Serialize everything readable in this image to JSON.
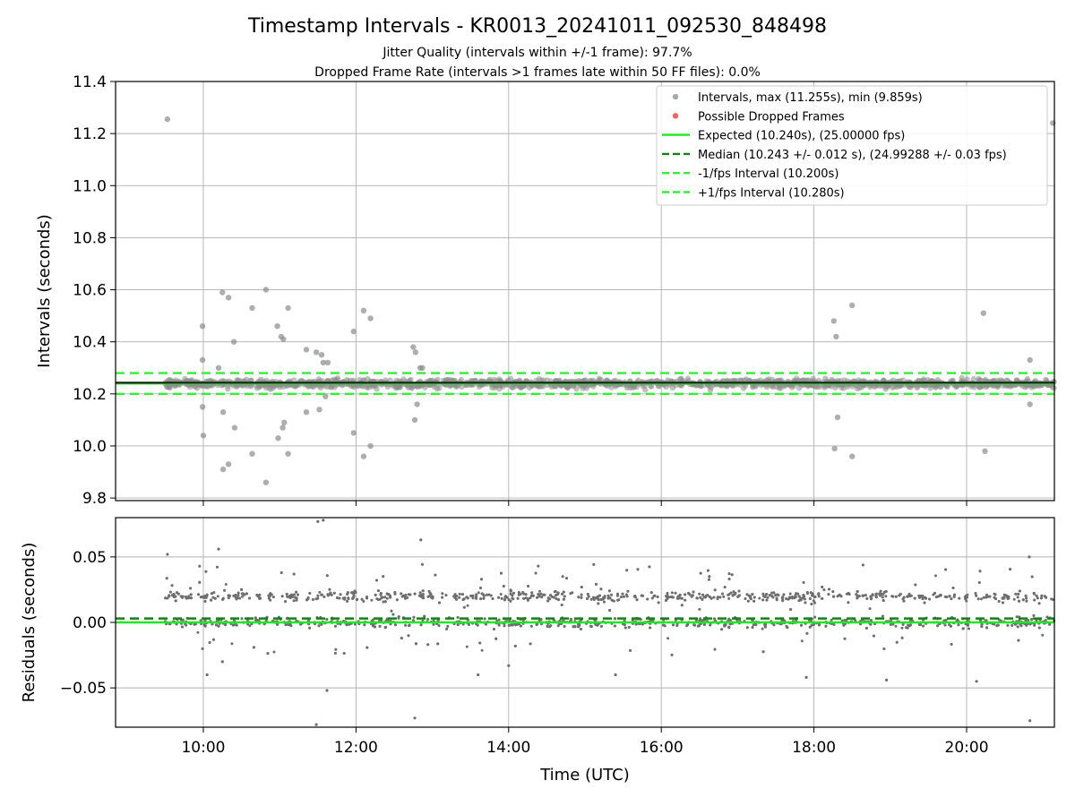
{
  "chart_data": {
    "type": "scatter",
    "title": "Timestamp Intervals - KR0013_20241011_092530_848498",
    "subtitle_lines": [
      "Jitter Quality (intervals within +/-1 frame): 97.7%",
      "Dropped Frame Rate (intervals >1 frames late within 50 FF files): 0.0%"
    ],
    "xlabel": "Time (UTC)",
    "x_ticks": [
      "10:00",
      "12:00",
      "14:00",
      "16:00",
      "18:00",
      "20:00"
    ],
    "x_range_hours": [
      8.85,
      21.15
    ],
    "data_x_range_hours": [
      9.5,
      21.15
    ],
    "grid": true,
    "legend_placement": "top-right",
    "colors": {
      "points": "#8c8c8c",
      "residual_points": "#6e6e6e",
      "dropped": "#ff6b6b",
      "expected": "#1ee81e",
      "median": "#177e17",
      "band": "#33ee33",
      "grid": "#b0b0b0"
    },
    "panels": [
      {
        "name": "intervals",
        "ylabel": "Intervals (seconds)",
        "ylim": [
          9.79,
          11.4
        ],
        "y_ticks": [
          "9.8",
          "10.0",
          "10.2",
          "10.4",
          "10.6",
          "10.8",
          "11.0",
          "11.2",
          "11.4"
        ],
        "y_tick_values": [
          9.8,
          10.0,
          10.2,
          10.4,
          10.6,
          10.8,
          11.0,
          11.2,
          11.4
        ],
        "lines": {
          "expected": 10.24,
          "median": 10.243,
          "minus_1_fps": 10.2,
          "plus_1_fps": 10.28
        },
        "core_band": [
          10.205,
          10.275
        ],
        "outliers": [
          {
            "x": 9.53,
            "y": 11.255
          },
          {
            "x": 9.99,
            "y": 10.46
          },
          {
            "x": 9.99,
            "y": 10.33
          },
          {
            "x": 9.99,
            "y": 10.15
          },
          {
            "x": 10.0,
            "y": 10.04
          },
          {
            "x": 10.2,
            "y": 10.3
          },
          {
            "x": 10.25,
            "y": 10.59
          },
          {
            "x": 10.26,
            "y": 10.13
          },
          {
            "x": 10.26,
            "y": 9.91
          },
          {
            "x": 10.33,
            "y": 10.57
          },
          {
            "x": 10.33,
            "y": 9.93
          },
          {
            "x": 10.4,
            "y": 10.4
          },
          {
            "x": 10.41,
            "y": 10.07
          },
          {
            "x": 10.64,
            "y": 10.53
          },
          {
            "x": 10.64,
            "y": 9.97
          },
          {
            "x": 10.82,
            "y": 10.6
          },
          {
            "x": 10.82,
            "y": 9.86
          },
          {
            "x": 10.97,
            "y": 10.46
          },
          {
            "x": 10.98,
            "y": 10.03
          },
          {
            "x": 11.02,
            "y": 10.42
          },
          {
            "x": 11.05,
            "y": 10.41
          },
          {
            "x": 11.04,
            "y": 10.07
          },
          {
            "x": 11.06,
            "y": 10.09
          },
          {
            "x": 11.11,
            "y": 10.53
          },
          {
            "x": 11.11,
            "y": 9.97
          },
          {
            "x": 11.35,
            "y": 10.37
          },
          {
            "x": 11.35,
            "y": 10.13
          },
          {
            "x": 11.48,
            "y": 10.36
          },
          {
            "x": 11.52,
            "y": 10.14
          },
          {
            "x": 11.55,
            "y": 10.35
          },
          {
            "x": 11.57,
            "y": 10.32
          },
          {
            "x": 11.63,
            "y": 10.32
          },
          {
            "x": 11.6,
            "y": 10.19
          },
          {
            "x": 11.97,
            "y": 10.44
          },
          {
            "x": 11.97,
            "y": 10.05
          },
          {
            "x": 12.1,
            "y": 10.52
          },
          {
            "x": 12.1,
            "y": 9.96
          },
          {
            "x": 12.19,
            "y": 10.49
          },
          {
            "x": 12.19,
            "y": 10.0
          },
          {
            "x": 12.75,
            "y": 10.38
          },
          {
            "x": 12.77,
            "y": 10.1
          },
          {
            "x": 12.78,
            "y": 10.36
          },
          {
            "x": 12.8,
            "y": 10.16
          },
          {
            "x": 12.84,
            "y": 10.3
          },
          {
            "x": 12.87,
            "y": 10.3
          },
          {
            "x": 18.26,
            "y": 10.48
          },
          {
            "x": 18.29,
            "y": 10.42
          },
          {
            "x": 18.31,
            "y": 10.11
          },
          {
            "x": 18.27,
            "y": 9.99
          },
          {
            "x": 18.5,
            "y": 10.54
          },
          {
            "x": 18.5,
            "y": 9.96
          },
          {
            "x": 20.22,
            "y": 10.51
          },
          {
            "x": 20.24,
            "y": 9.98
          },
          {
            "x": 20.83,
            "y": 10.33
          },
          {
            "x": 20.83,
            "y": 10.16
          },
          {
            "x": 21.13,
            "y": 11.24
          }
        ],
        "legend": [
          {
            "label": "Intervals, max (11.255s), min (9.859s)",
            "kind": "dot",
            "color": "#a8a8a8"
          },
          {
            "label": "Possible Dropped Frames",
            "kind": "dot",
            "color": "#f06464"
          },
          {
            "label": "Expected (10.240s), (25.00000 fps)",
            "kind": "solid",
            "color": "#1ee81e"
          },
          {
            "label": "Median (10.243 +/- 0.012 s), (24.99288 +/- 0.03 fps)",
            "kind": "dashed",
            "color": "#177e17"
          },
          {
            "label": "-1/fps Interval (10.200s)",
            "kind": "dashed",
            "color": "#33ee33"
          },
          {
            "label": "+1/fps Interval (10.280s)",
            "kind": "dashed",
            "color": "#33ee33"
          }
        ]
      },
      {
        "name": "residuals",
        "ylabel": "Residuals (seconds)",
        "ylim": [
          -0.08,
          0.08
        ],
        "y_ticks": [
          "−0.05",
          "0.00",
          "0.05"
        ],
        "y_tick_values": [
          -0.05,
          0.0,
          0.05
        ],
        "lines": {
          "zero": 0.0,
          "median": 0.003
        },
        "clusters": [
          0.0,
          0.02
        ],
        "outliers": [
          {
            "x": 9.53,
            "y": 0.052
          },
          {
            "x": 9.99,
            "y": -0.02
          },
          {
            "x": 10.05,
            "y": -0.04
          },
          {
            "x": 10.2,
            "y": 0.056
          },
          {
            "x": 10.25,
            "y": -0.03
          },
          {
            "x": 11.5,
            "y": 0.077
          },
          {
            "x": 11.57,
            "y": 0.078
          },
          {
            "x": 11.62,
            "y": -0.052
          },
          {
            "x": 11.48,
            "y": -0.078
          },
          {
            "x": 12.85,
            "y": 0.063
          },
          {
            "x": 12.77,
            "y": -0.073
          },
          {
            "x": 13.6,
            "y": -0.04
          },
          {
            "x": 14.0,
            "y": -0.033
          },
          {
            "x": 15.4,
            "y": -0.04
          },
          {
            "x": 17.9,
            "y": -0.042
          },
          {
            "x": 18.95,
            "y": -0.044
          },
          {
            "x": 20.13,
            "y": -0.045
          },
          {
            "x": 20.83,
            "y": -0.075
          },
          {
            "x": 20.82,
            "y": 0.05
          }
        ]
      }
    ]
  }
}
